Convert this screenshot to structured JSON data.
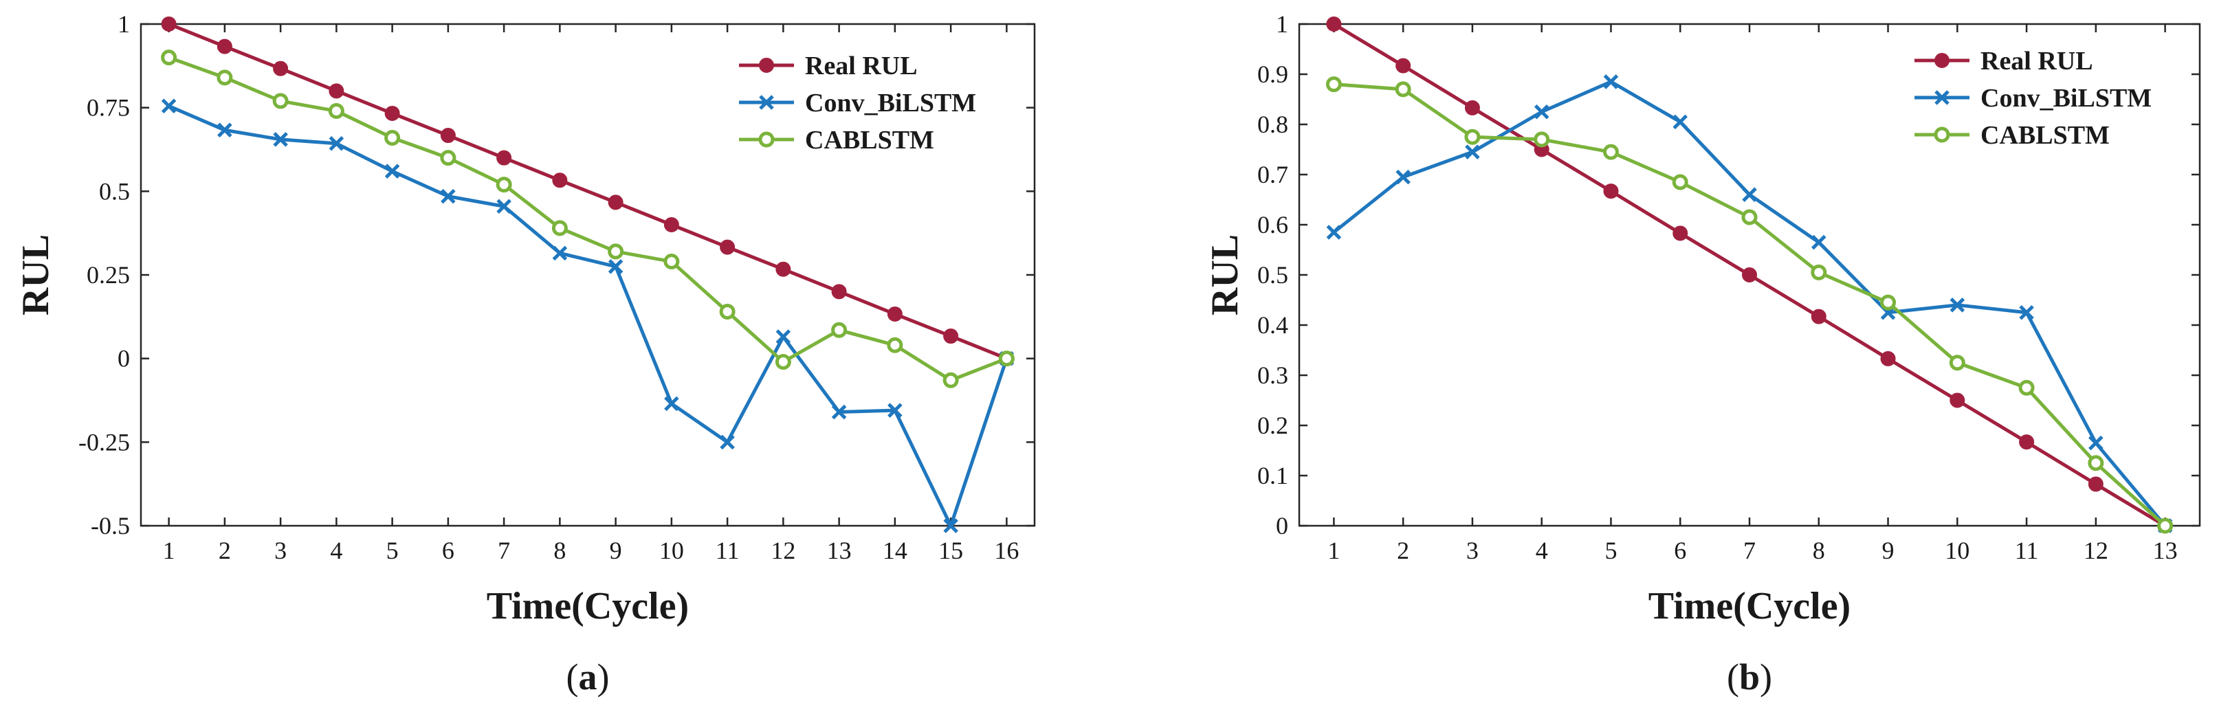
{
  "chart_data": [
    {
      "type": "line",
      "panel_label": "a",
      "xlabel": "Time(Cycle)",
      "ylabel": "RUL",
      "x": [
        1,
        2,
        3,
        4,
        5,
        6,
        7,
        8,
        9,
        10,
        11,
        12,
        13,
        14,
        15,
        16
      ],
      "xlim": [
        0.5,
        16.5
      ],
      "ylim": [
        -0.5,
        1
      ],
      "yticks": [
        -0.5,
        -0.25,
        0,
        0.25,
        0.5,
        0.75,
        1
      ],
      "ytick_labels": [
        "-0.5",
        "-0.25",
        "0",
        "0.25",
        "0.5",
        "0.75",
        "1"
      ],
      "xtick_labels": [
        "1",
        "2",
        "3",
        "4",
        "5",
        "6",
        "7",
        "8",
        "9",
        "10",
        "11",
        "12",
        "13",
        "14",
        "15",
        "16"
      ],
      "legend_position": "top-right",
      "series": [
        {
          "name": "Real RUL",
          "color": "#A2203F",
          "marker": "dot",
          "values": [
            1.0,
            0.933,
            0.867,
            0.8,
            0.733,
            0.667,
            0.6,
            0.533,
            0.467,
            0.4,
            0.333,
            0.267,
            0.2,
            0.133,
            0.067,
            0.0
          ]
        },
        {
          "name": "Conv_BiLSTM",
          "color": "#1F77BE",
          "marker": "x",
          "values": [
            0.755,
            0.683,
            0.655,
            0.643,
            0.56,
            0.485,
            0.455,
            0.315,
            0.275,
            -0.135,
            -0.25,
            0.065,
            -0.16,
            -0.155,
            -0.5,
            0.0
          ]
        },
        {
          "name": "CABLSTM",
          "color": "#7AB33B",
          "marker": "circle",
          "values": [
            0.9,
            0.84,
            0.77,
            0.74,
            0.66,
            0.6,
            0.52,
            0.39,
            0.32,
            0.29,
            0.14,
            -0.01,
            0.085,
            0.04,
            -0.065,
            0.0
          ]
        }
      ]
    },
    {
      "type": "line",
      "panel_label": "b",
      "xlabel": "Time(Cycle)",
      "ylabel": "RUL",
      "x": [
        1,
        2,
        3,
        4,
        5,
        6,
        7,
        8,
        9,
        10,
        11,
        12,
        13
      ],
      "xlim": [
        0.5,
        13.5
      ],
      "ylim": [
        0,
        1
      ],
      "yticks": [
        0,
        0.1,
        0.2,
        0.3,
        0.4,
        0.5,
        0.6,
        0.7,
        0.8,
        0.9,
        1
      ],
      "ytick_labels": [
        "0",
        "0.1",
        "0.2",
        "0.3",
        "0.4",
        "0.5",
        "0.6",
        "0.7",
        "0.8",
        "0.9",
        "1"
      ],
      "xtick_labels": [
        "1",
        "2",
        "3",
        "4",
        "5",
        "6",
        "7",
        "8",
        "9",
        "10",
        "11",
        "12",
        "13"
      ],
      "legend_position": "top-right",
      "series": [
        {
          "name": "Real RUL",
          "color": "#A2203F",
          "marker": "dot",
          "values": [
            1.0,
            0.917,
            0.833,
            0.75,
            0.667,
            0.583,
            0.5,
            0.417,
            0.333,
            0.25,
            0.167,
            0.083,
            0.0
          ]
        },
        {
          "name": "Conv_BiLSTM",
          "color": "#1F77BE",
          "marker": "x",
          "values": [
            0.585,
            0.695,
            0.745,
            0.825,
            0.885,
            0.805,
            0.66,
            0.565,
            0.425,
            0.44,
            0.425,
            0.165,
            0.0
          ]
        },
        {
          "name": "CABLSTM",
          "color": "#7AB33B",
          "marker": "circle",
          "values": [
            0.88,
            0.87,
            0.775,
            0.77,
            0.745,
            0.685,
            0.615,
            0.505,
            0.445,
            0.325,
            0.275,
            0.125,
            0.0
          ]
        }
      ]
    }
  ]
}
